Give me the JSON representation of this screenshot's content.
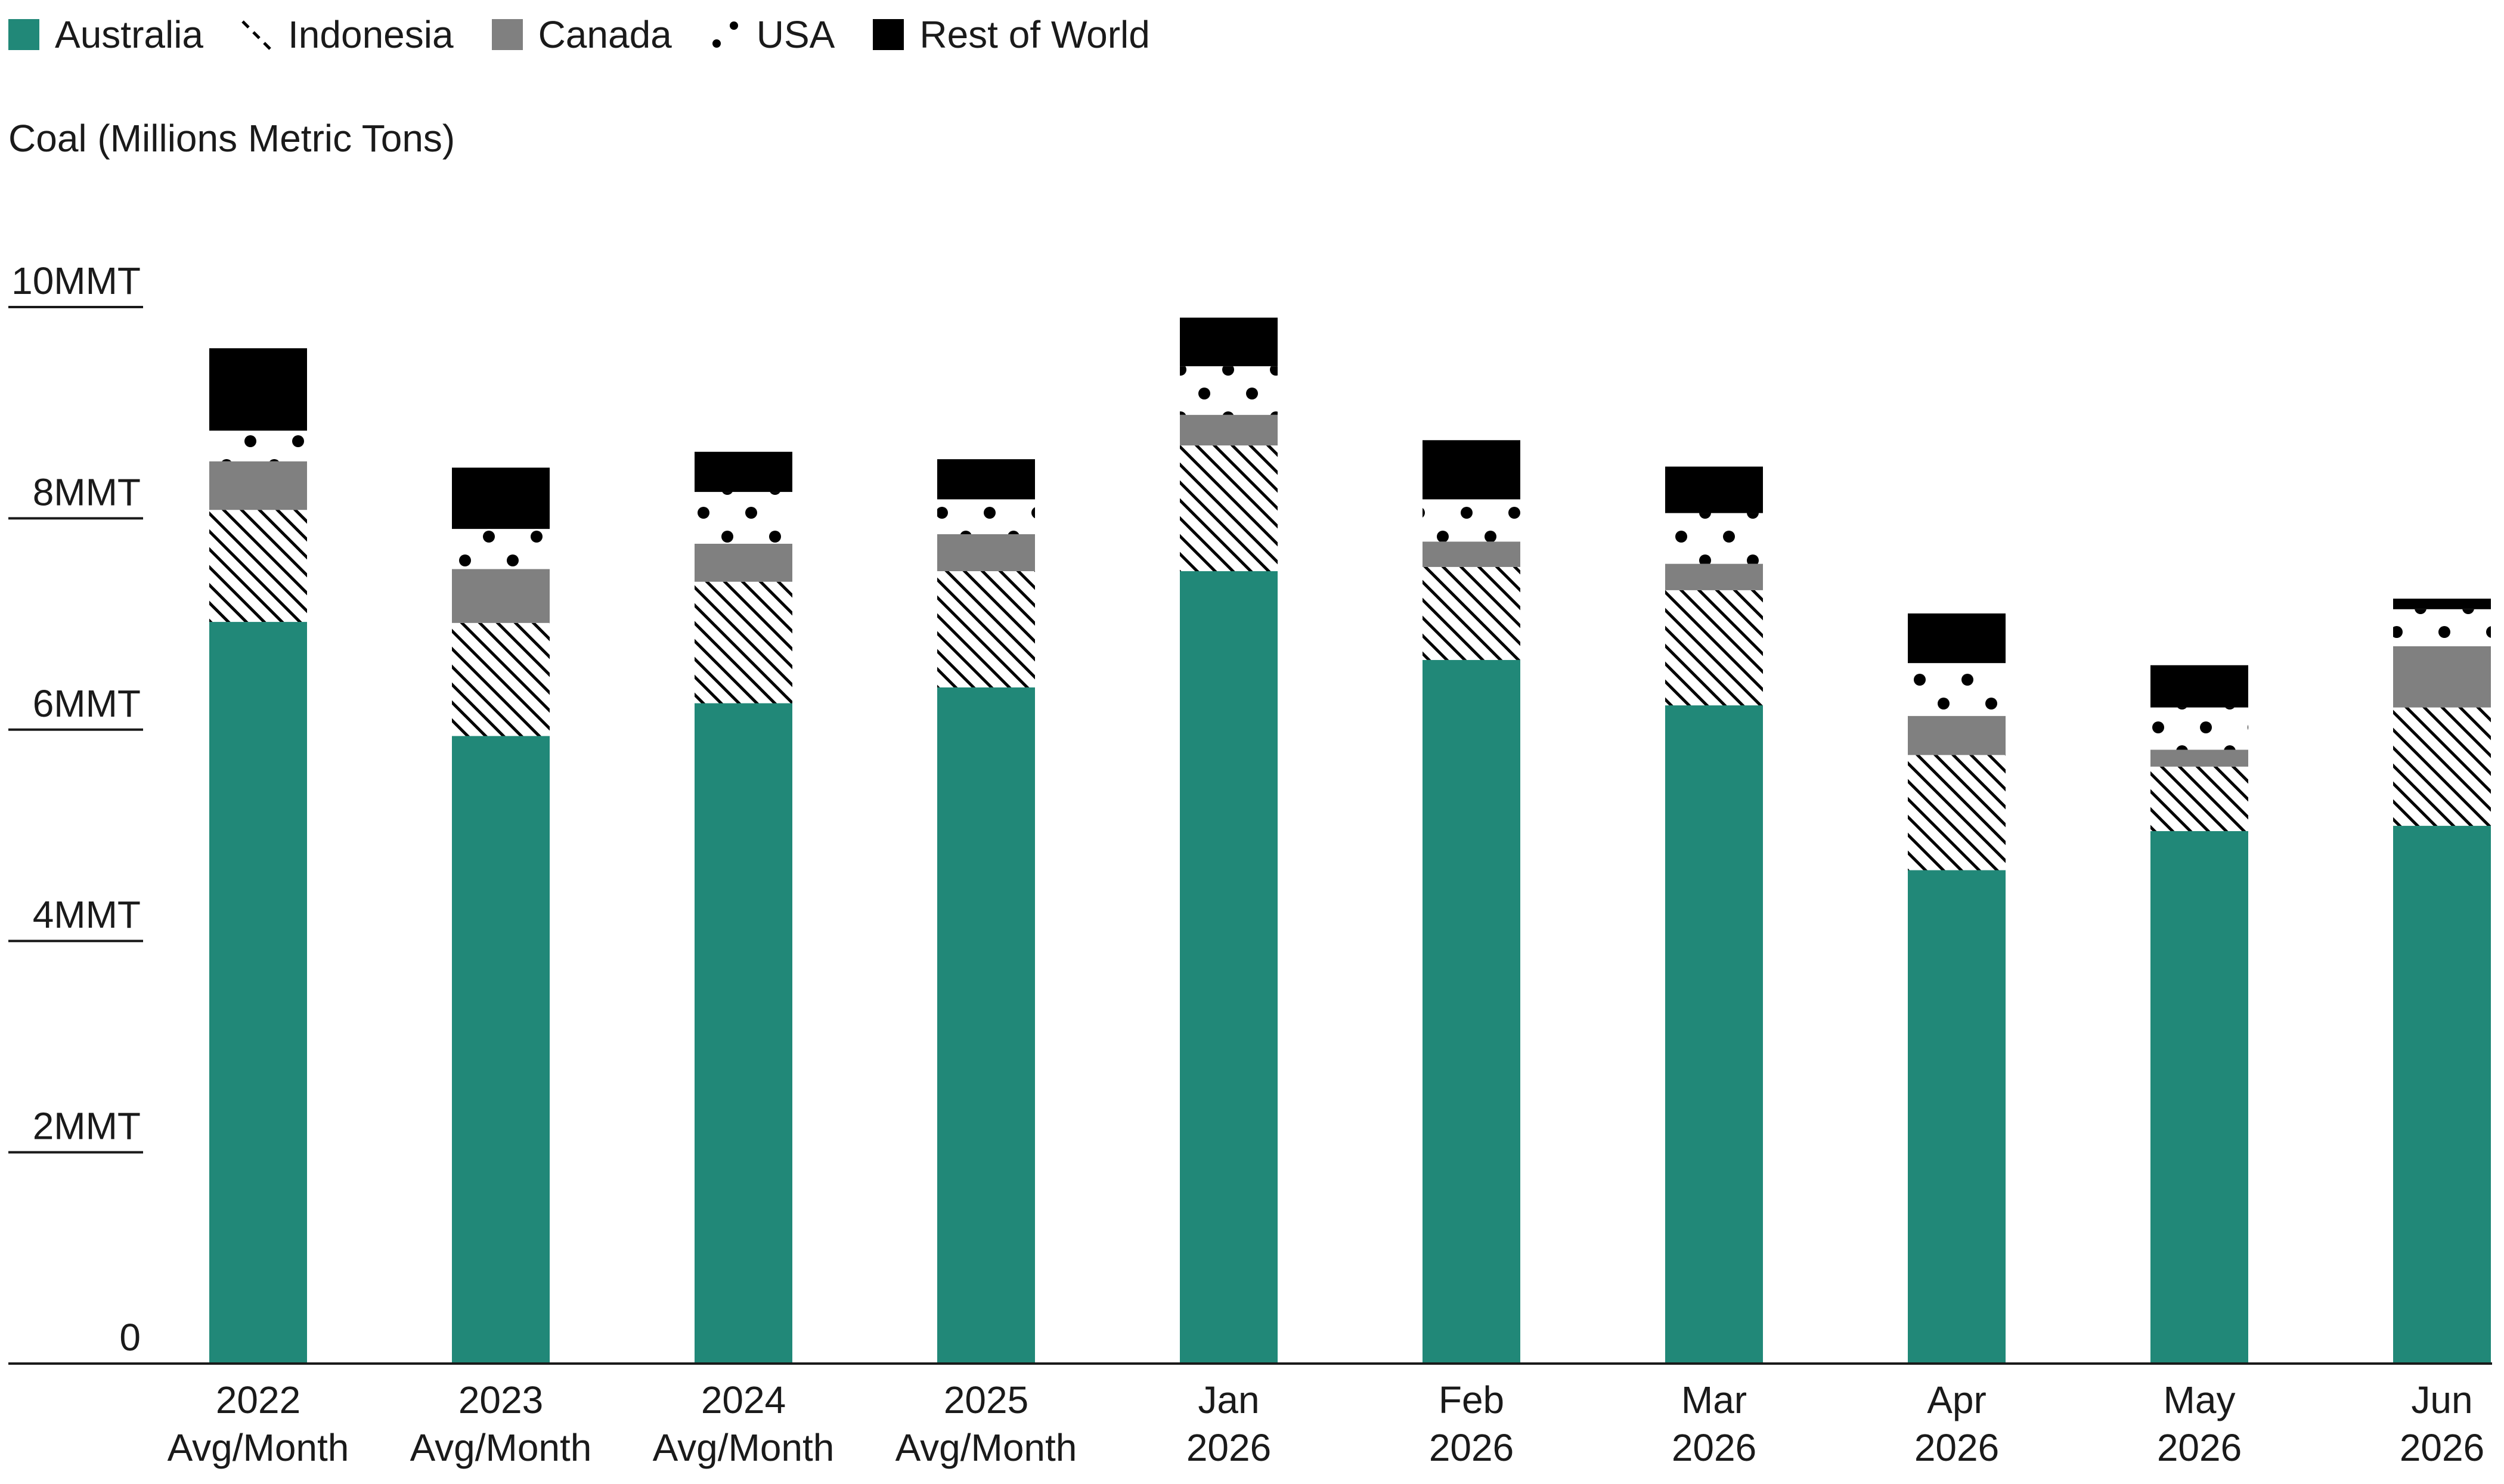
{
  "colors": {
    "Australia": "#218878",
    "Indonesia": "#000000",
    "Canada": "#808080",
    "USA": "#000000",
    "Rest of World": "#000000"
  },
  "chart_data": {
    "type": "bar",
    "stacked": true,
    "title": "",
    "ylabel": "Coal (Millions Metric Tons)",
    "xlabel": "",
    "ylim": [
      0,
      10
    ],
    "yticks": [
      0,
      2,
      4,
      6,
      8,
      10
    ],
    "ytick_labels": [
      "0",
      "2MMT",
      "4MMT",
      "6MMT",
      "8MMT",
      "10MMT"
    ],
    "legend_position": "top-left",
    "grid": false,
    "categories": [
      [
        "2022",
        "Avg/Month"
      ],
      [
        "2023",
        "Avg/Month"
      ],
      [
        "2024",
        "Avg/Month"
      ],
      [
        "2025",
        "Avg/Month"
      ],
      [
        "Jan",
        "2026"
      ],
      [
        "Feb",
        "2026"
      ],
      [
        "Mar",
        "2026"
      ],
      [
        "Apr",
        "2026"
      ],
      [
        "May",
        "2026"
      ],
      [
        "Jun",
        "2026"
      ]
    ],
    "series": [
      {
        "name": "Australia",
        "pattern": "solid-teal",
        "values": [
          7.02,
          5.94,
          6.25,
          6.4,
          7.5,
          6.66,
          6.23,
          4.67,
          5.04,
          5.09
        ]
      },
      {
        "name": "Indonesia",
        "pattern": "diagonal-hatch",
        "values": [
          1.06,
          1.07,
          1.15,
          1.1,
          1.19,
          0.88,
          1.09,
          1.09,
          0.61,
          1.12
        ]
      },
      {
        "name": "Canada",
        "pattern": "solid-gray",
        "values": [
          0.46,
          0.51,
          0.36,
          0.35,
          0.29,
          0.24,
          0.25,
          0.37,
          0.16,
          0.58
        ]
      },
      {
        "name": "USA",
        "pattern": "dots",
        "values": [
          0.29,
          0.38,
          0.49,
          0.33,
          0.46,
          0.4,
          0.48,
          0.5,
          0.4,
          0.35
        ]
      },
      {
        "name": "Rest of World",
        "pattern": "solid-black",
        "values": [
          0.78,
          0.58,
          0.38,
          0.38,
          0.46,
          0.56,
          0.44,
          0.47,
          0.4,
          0.1
        ]
      }
    ]
  }
}
